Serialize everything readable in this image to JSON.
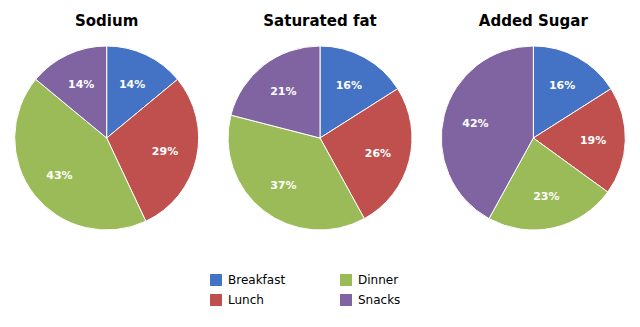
{
  "chart_data": {
    "type": "pie",
    "categories": [
      "Breakfast",
      "Lunch",
      "Dinner",
      "Snacks"
    ],
    "colors": [
      "#4472C4",
      "#C0504D",
      "#9BBB59",
      "#8064A2"
    ],
    "series": [
      {
        "name": "Sodium",
        "values": [
          14,
          29,
          43,
          14
        ],
        "value_labels": [
          "14%",
          "29%",
          "43%",
          "14%"
        ]
      },
      {
        "name": "Saturated fat",
        "values": [
          16,
          26,
          37,
          21
        ],
        "value_labels": [
          "16%",
          "26%",
          "37%",
          "21%"
        ]
      },
      {
        "name": "Added Sugar",
        "values": [
          16,
          19,
          23,
          42
        ],
        "value_labels": [
          "16%",
          "19%",
          "23%",
          "42%"
        ]
      }
    ],
    "data_labels": true,
    "legend": "bottom"
  }
}
